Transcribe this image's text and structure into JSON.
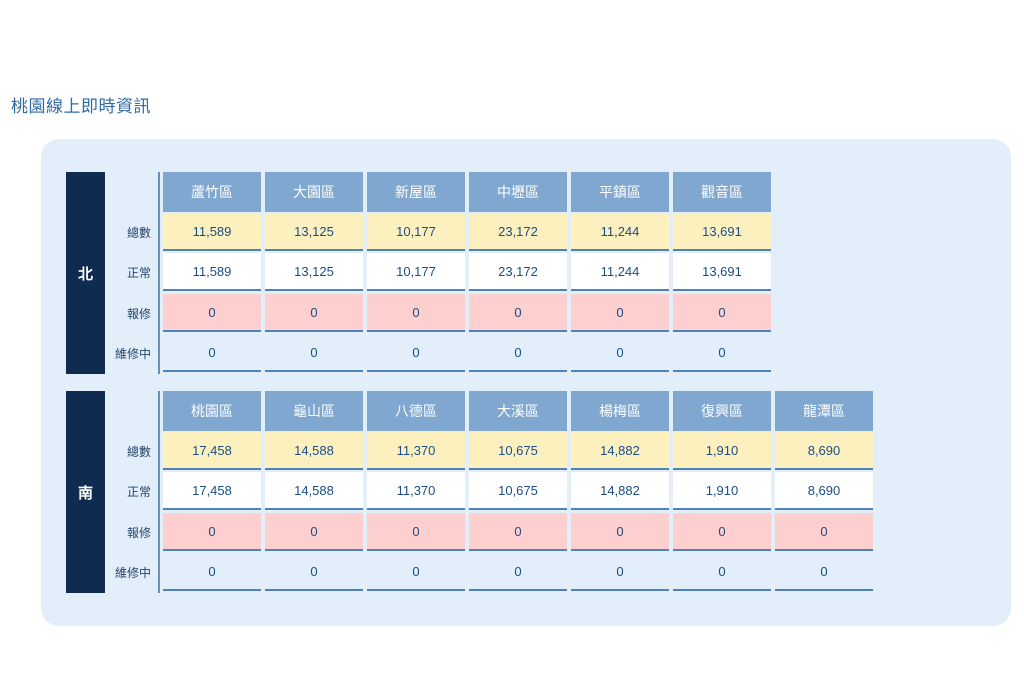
{
  "page_title": "桃園線上即時資訊",
  "row_labels": [
    "總數",
    "正常",
    "報修",
    "維修中"
  ],
  "regions": [
    {
      "label": "北",
      "districts": [
        {
          "name": "蘆竹區",
          "total": "11,589",
          "normal": "11,589",
          "repair": "0",
          "maintenance": "0"
        },
        {
          "name": "大園區",
          "total": "13,125",
          "normal": "13,125",
          "repair": "0",
          "maintenance": "0"
        },
        {
          "name": "新屋區",
          "total": "10,177",
          "normal": "10,177",
          "repair": "0",
          "maintenance": "0"
        },
        {
          "name": "中壢區",
          "total": "23,172",
          "normal": "23,172",
          "repair": "0",
          "maintenance": "0"
        },
        {
          "name": "平鎮區",
          "total": "11,244",
          "normal": "11,244",
          "repair": "0",
          "maintenance": "0"
        },
        {
          "name": "觀音區",
          "total": "13,691",
          "normal": "13,691",
          "repair": "0",
          "maintenance": "0"
        }
      ]
    },
    {
      "label": "南",
      "districts": [
        {
          "name": "桃園區",
          "total": "17,458",
          "normal": "17,458",
          "repair": "0",
          "maintenance": "0"
        },
        {
          "name": "龜山區",
          "total": "14,588",
          "normal": "14,588",
          "repair": "0",
          "maintenance": "0"
        },
        {
          "name": "八德區",
          "total": "11,370",
          "normal": "11,370",
          "repair": "0",
          "maintenance": "0"
        },
        {
          "name": "大溪區",
          "total": "10,675",
          "normal": "10,675",
          "repair": "0",
          "maintenance": "0"
        },
        {
          "name": "楊梅區",
          "total": "14,882",
          "normal": "14,882",
          "repair": "0",
          "maintenance": "0"
        },
        {
          "name": "復興區",
          "total": "1,910",
          "normal": "1,910",
          "repair": "0",
          "maintenance": "0"
        },
        {
          "name": "龍潭區",
          "total": "8,690",
          "normal": "8,690",
          "repair": "0",
          "maintenance": "0"
        }
      ]
    }
  ],
  "colors": {
    "title": "#2f6aa6",
    "panel_bg": "#e2effb",
    "region_label_bg": "#0f2b4f",
    "header_bg": "#7fa7cf",
    "total_bg": "#fdf0bf",
    "normal_bg": "#ffffff",
    "repair_bg": "#fdcfcf"
  }
}
